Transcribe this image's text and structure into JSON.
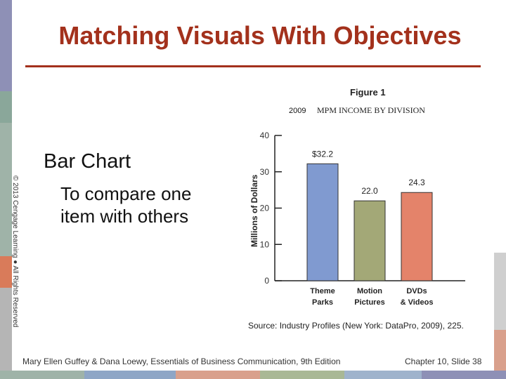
{
  "slide": {
    "title": "Matching Visuals With Objectives",
    "copyright": "© 2013 Cengage Learning ● All Rights Reserved",
    "bullet_main": "Bar Chart",
    "bullet_sub": "To compare one item with others",
    "footer_left": "Mary Ellen Guffey & Dana Loewy, Essentials of Business Communication, 9th Edition",
    "footer_right": "Chapter 10, Slide 38",
    "accent_color": "#a3311c"
  },
  "chart_data": {
    "type": "bar",
    "figure_label": "Figure 1",
    "year": "2009",
    "title": "MPM INCOME BY DIVISION",
    "ylabel": "Millions of Dollars",
    "ylim": [
      0,
      40
    ],
    "yticks": [
      0,
      10,
      20,
      30,
      40
    ],
    "categories": [
      [
        "Theme",
        "Parks"
      ],
      [
        "Motion",
        "Pictures"
      ],
      [
        "DVDs",
        "& Videos"
      ]
    ],
    "values": [
      32.2,
      22.0,
      24.3
    ],
    "data_labels": [
      "$32.2",
      "22.0",
      "24.3"
    ],
    "colors": [
      "#809ad0",
      "#a3a877",
      "#e4836a"
    ],
    "source": "Source: Industry Profiles (New York: DataPro, 2009), 225."
  }
}
